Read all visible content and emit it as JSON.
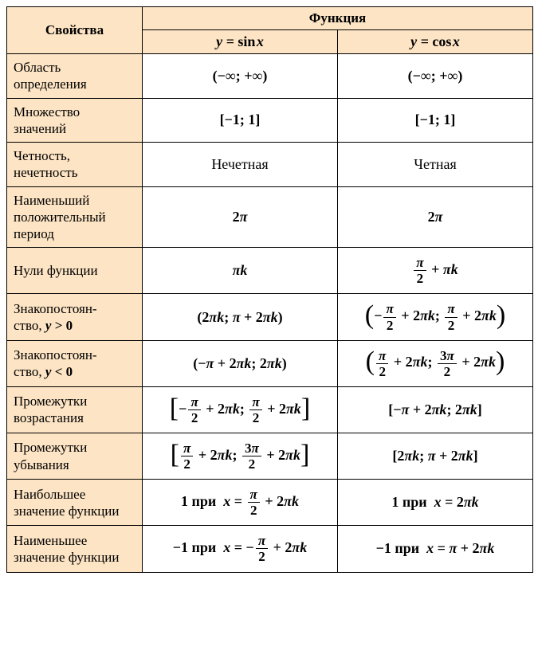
{
  "colors": {
    "header_bg": "#fde4c4",
    "property_bg": "#fde4c4",
    "value_bg": "#ffffff",
    "border": "#000000",
    "text": "#000000"
  },
  "fontsize": {
    "header": 17,
    "property": 17,
    "value": 18
  },
  "header": {
    "properties": "Свойства",
    "function": "Функция",
    "sin": "y = sin x",
    "cos": "y = cos x"
  },
  "rows": [
    {
      "property": "Область определения",
      "sin": "(−∞; +∞)",
      "cos": "(−∞; +∞)"
    },
    {
      "property": "Множество значений",
      "sin": "[−1; 1]",
      "cos": "[−1; 1]"
    },
    {
      "property": "Четность, нечетность",
      "sin": "Нечетная",
      "cos": "Четная"
    },
    {
      "property": "Наименьший положительный период",
      "sin": "2π",
      "cos": "2π"
    },
    {
      "property": "Нули функции",
      "sin": "πk",
      "cos": "π/2 + πk"
    },
    {
      "property": "Знакопостоян­ство, y > 0",
      "sin": "(2πk; π + 2πk)",
      "cos": "(−π/2 + 2πk; π/2 + 2πk)"
    },
    {
      "property": "Знакопостоян­ство, y < 0",
      "sin": "(−π + 2πk; 2πk)",
      "cos": "(π/2 + 2πk; 3π/2 + 2πk)"
    },
    {
      "property": "Промежутки возрастания",
      "sin": "[−π/2 + 2πk; π/2 + 2πk]",
      "cos": "[−π + 2πk; 2πk]"
    },
    {
      "property": "Промежутки убывания",
      "sin": "[π/2 + 2πk; 3π/2 + 2πk]",
      "cos": "[2πk; π + 2πk]"
    },
    {
      "property": "Наибольшее значение функции",
      "sin": "1 при x = π/2 + 2πk",
      "cos": "1 при x = 2πk"
    },
    {
      "property": "Наименьшее значение функции",
      "sin": "−1 при x = −π/2 + 2πk",
      "cos": "−1 при x = π + 2πk"
    }
  ]
}
